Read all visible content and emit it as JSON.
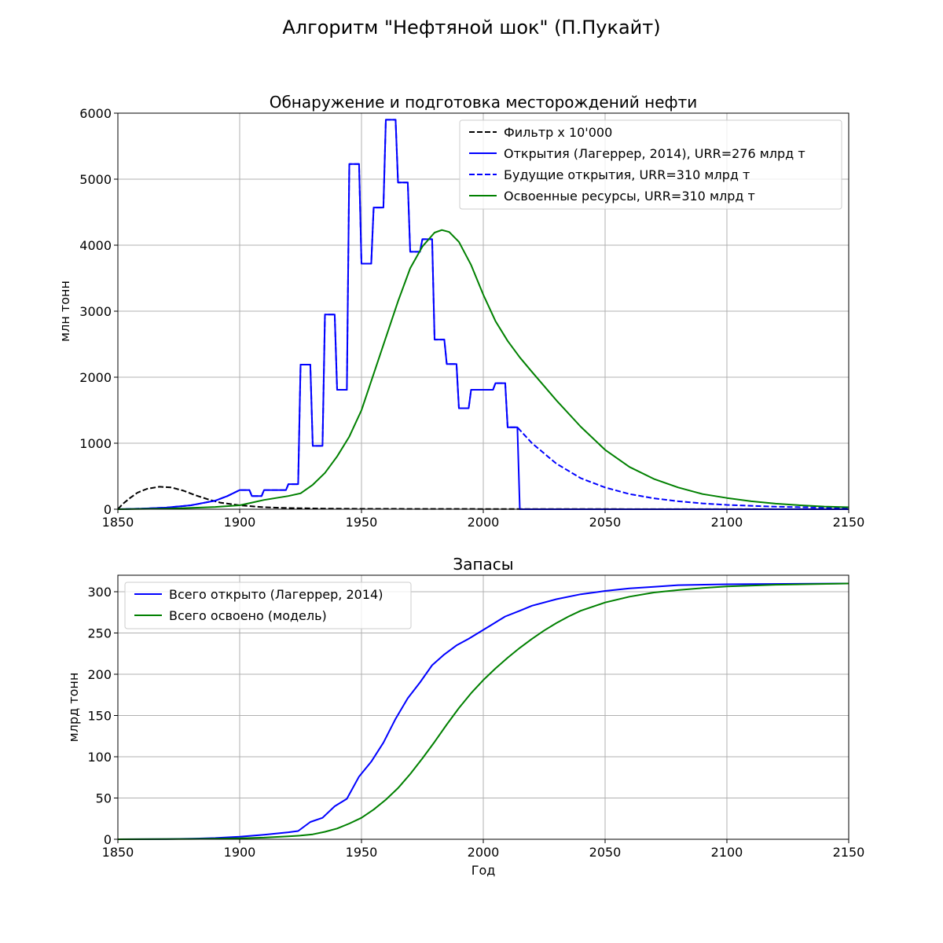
{
  "figure": {
    "title": "Алгоритм \"Нефтяной шок\" (П.Пукайт)"
  },
  "chart_data": [
    {
      "type": "line",
      "title": "Обнаружение и подготовка месторождений нефти",
      "xlabel": "",
      "ylabel": "млн тонн",
      "xlim": [
        1850,
        2150
      ],
      "ylim": [
        0,
        6000
      ],
      "xticks": [
        1850,
        1900,
        1950,
        2000,
        2050,
        2100,
        2150
      ],
      "yticks": [
        0,
        1000,
        2000,
        3000,
        4000,
        5000,
        6000
      ],
      "grid": true,
      "legend_position": "top-right",
      "series": [
        {
          "name": "Фильтр х 10'000",
          "color": "#000000",
          "dash": "dashed",
          "points": [
            [
              1850,
              0
            ],
            [
              1852,
              80
            ],
            [
              1855,
              170
            ],
            [
              1858,
              250
            ],
            [
              1862,
              310
            ],
            [
              1867,
              340
            ],
            [
              1872,
              330
            ],
            [
              1877,
              280
            ],
            [
              1882,
              210
            ],
            [
              1887,
              150
            ],
            [
              1892,
              100
            ],
            [
              1900,
              60
            ],
            [
              1910,
              30
            ],
            [
              1920,
              18
            ],
            [
              1935,
              10
            ],
            [
              1950,
              6
            ],
            [
              2000,
              3
            ],
            [
              2150,
              0
            ]
          ]
        },
        {
          "name": "Будущие открытия, URR=310 млрд т",
          "color": "#0000ff",
          "dash": "dashed",
          "points": [
            [
              1850,
              0
            ],
            [
              1860,
              10
            ],
            [
              1870,
              25
            ],
            [
              1880,
              60
            ],
            [
              1890,
              130
            ],
            [
              1895,
              200
            ],
            [
              1900,
              290
            ],
            [
              1904,
              290
            ],
            [
              1905,
              200
            ],
            [
              1909,
              200
            ],
            [
              1910,
              290
            ],
            [
              1919,
              290
            ],
            [
              1920,
              380
            ],
            [
              1924,
              380
            ],
            [
              1925,
              2190
            ],
            [
              1929,
              2190
            ],
            [
              1930,
              960
            ],
            [
              1934,
              960
            ],
            [
              1935,
              2950
            ],
            [
              1939,
              2950
            ],
            [
              1940,
              1810
            ],
            [
              1944,
              1810
            ],
            [
              1945,
              5230
            ],
            [
              1949,
              5230
            ],
            [
              1950,
              3720
            ],
            [
              1954,
              3720
            ],
            [
              1955,
              4570
            ],
            [
              1959,
              4570
            ],
            [
              1960,
              5900
            ],
            [
              1964,
              5900
            ],
            [
              1965,
              4950
            ],
            [
              1969,
              4950
            ],
            [
              1970,
              3900
            ],
            [
              1974,
              3900
            ],
            [
              1975,
              4090
            ],
            [
              1979,
              4090
            ],
            [
              1980,
              2570
            ],
            [
              1984,
              2570
            ],
            [
              1985,
              2200
            ],
            [
              1989,
              2200
            ],
            [
              1990,
              1530
            ],
            [
              1994,
              1530
            ],
            [
              1995,
              1810
            ],
            [
              2004,
              1810
            ],
            [
              2005,
              1910
            ],
            [
              2009,
              1910
            ],
            [
              2010,
              1240
            ],
            [
              2014,
              1240
            ],
            [
              2020,
              1000
            ],
            [
              2030,
              690
            ],
            [
              2040,
              470
            ],
            [
              2050,
              330
            ],
            [
              2060,
              230
            ],
            [
              2070,
              165
            ],
            [
              2080,
              120
            ],
            [
              2090,
              88
            ],
            [
              2100,
              65
            ],
            [
              2120,
              38
            ],
            [
              2150,
              15
            ]
          ]
        },
        {
          "name": "Открытия (Лагеррер, 2014), URR=276 млрд т",
          "color": "#0000ff",
          "dash": "solid",
          "points": [
            [
              1850,
              0
            ],
            [
              1860,
              10
            ],
            [
              1870,
              25
            ],
            [
              1880,
              60
            ],
            [
              1890,
              130
            ],
            [
              1895,
              200
            ],
            [
              1900,
              290
            ],
            [
              1904,
              290
            ],
            [
              1905,
              200
            ],
            [
              1909,
              200
            ],
            [
              1910,
              290
            ],
            [
              1919,
              290
            ],
            [
              1920,
              380
            ],
            [
              1924,
              380
            ],
            [
              1925,
              2190
            ],
            [
              1929,
              2190
            ],
            [
              1930,
              960
            ],
            [
              1934,
              960
            ],
            [
              1935,
              2950
            ],
            [
              1939,
              2950
            ],
            [
              1940,
              1810
            ],
            [
              1944,
              1810
            ],
            [
              1945,
              5230
            ],
            [
              1949,
              5230
            ],
            [
              1950,
              3720
            ],
            [
              1954,
              3720
            ],
            [
              1955,
              4570
            ],
            [
              1959,
              4570
            ],
            [
              1960,
              5900
            ],
            [
              1964,
              5900
            ],
            [
              1965,
              4950
            ],
            [
              1969,
              4950
            ],
            [
              1970,
              3900
            ],
            [
              1974,
              3900
            ],
            [
              1975,
              4090
            ],
            [
              1979,
              4090
            ],
            [
              1980,
              2570
            ],
            [
              1984,
              2570
            ],
            [
              1985,
              2200
            ],
            [
              1989,
              2200
            ],
            [
              1990,
              1530
            ],
            [
              1994,
              1530
            ],
            [
              1995,
              1810
            ],
            [
              2004,
              1810
            ],
            [
              2005,
              1910
            ],
            [
              2009,
              1910
            ],
            [
              2010,
              1240
            ],
            [
              2014,
              1240
            ],
            [
              2015,
              0
            ],
            [
              2150,
              0
            ]
          ]
        },
        {
          "name": "Освоенные ресурсы, URR=310 млрд т",
          "color": "#008000",
          "dash": "solid",
          "points": [
            [
              1850,
              0
            ],
            [
              1870,
              10
            ],
            [
              1880,
              20
            ],
            [
              1890,
              35
            ],
            [
              1900,
              60
            ],
            [
              1905,
              100
            ],
            [
              1910,
              140
            ],
            [
              1915,
              170
            ],
            [
              1920,
              200
            ],
            [
              1925,
              240
            ],
            [
              1930,
              370
            ],
            [
              1935,
              550
            ],
            [
              1940,
              800
            ],
            [
              1945,
              1100
            ],
            [
              1950,
              1500
            ],
            [
              1955,
              2050
            ],
            [
              1960,
              2600
            ],
            [
              1965,
              3150
            ],
            [
              1970,
              3650
            ],
            [
              1975,
              3980
            ],
            [
              1980,
              4190
            ],
            [
              1983,
              4230
            ],
            [
              1986,
              4200
            ],
            [
              1990,
              4050
            ],
            [
              1995,
              3700
            ],
            [
              2000,
              3250
            ],
            [
              2005,
              2850
            ],
            [
              2010,
              2550
            ],
            [
              2015,
              2300
            ],
            [
              2020,
              2080
            ],
            [
              2030,
              1650
            ],
            [
              2040,
              1250
            ],
            [
              2050,
              900
            ],
            [
              2060,
              640
            ],
            [
              2070,
              460
            ],
            [
              2080,
              330
            ],
            [
              2090,
              230
            ],
            [
              2100,
              170
            ],
            [
              2110,
              120
            ],
            [
              2120,
              85
            ],
            [
              2130,
              60
            ],
            [
              2140,
              40
            ],
            [
              2150,
              30
            ]
          ]
        }
      ]
    },
    {
      "type": "line",
      "title": "Запасы",
      "xlabel": "Год",
      "ylabel": "млрд тонн",
      "xlim": [
        1850,
        2150
      ],
      "ylim": [
        0,
        320
      ],
      "xticks": [
        1850,
        1900,
        1950,
        2000,
        2050,
        2100,
        2150
      ],
      "yticks": [
        0,
        50,
        100,
        150,
        200,
        250,
        300
      ],
      "grid": true,
      "legend_position": "top-left",
      "series": [
        {
          "name": "Всего открыто (Лагеррер, 2014)",
          "color": "#0000ff",
          "dash": "solid",
          "points": [
            [
              1850,
              0
            ],
            [
              1870,
              0.3
            ],
            [
              1880,
              0.7
            ],
            [
              1890,
              1.5
            ],
            [
              1900,
              3
            ],
            [
              1905,
              4.3
            ],
            [
              1910,
              5.5
            ],
            [
              1920,
              8.5
            ],
            [
              1924,
              10
            ],
            [
              1929,
              21
            ],
            [
              1934,
              26
            ],
            [
              1939,
              40
            ],
            [
              1944,
              49
            ],
            [
              1949,
              76
            ],
            [
              1954,
              94
            ],
            [
              1959,
              117
            ],
            [
              1964,
              146
            ],
            [
              1969,
              171
            ],
            [
              1974,
              190
            ],
            [
              1979,
              211
            ],
            [
              1984,
              224
            ],
            [
              1989,
              235
            ],
            [
              1994,
              243
            ],
            [
              2004,
              261
            ],
            [
              2009,
              270
            ],
            [
              2015,
              277
            ],
            [
              2020,
              283
            ],
            [
              2030,
              291
            ],
            [
              2040,
              297
            ],
            [
              2050,
              301
            ],
            [
              2060,
              304
            ],
            [
              2070,
              306
            ],
            [
              2080,
              308
            ],
            [
              2100,
              309
            ],
            [
              2150,
              310
            ]
          ]
        },
        {
          "name": "Всего освоено (модель)",
          "color": "#008000",
          "dash": "solid",
          "points": [
            [
              1850,
              0
            ],
            [
              1880,
              0.4
            ],
            [
              1890,
              0.7
            ],
            [
              1900,
              1.2
            ],
            [
              1910,
              2
            ],
            [
              1920,
              3.5
            ],
            [
              1925,
              4.5
            ],
            [
              1930,
              6
            ],
            [
              1935,
              9
            ],
            [
              1940,
              13
            ],
            [
              1945,
              19
            ],
            [
              1950,
              26
            ],
            [
              1955,
              36
            ],
            [
              1960,
              48
            ],
            [
              1965,
              62
            ],
            [
              1970,
              79
            ],
            [
              1975,
              98
            ],
            [
              1980,
              118
            ],
            [
              1985,
              139
            ],
            [
              1990,
              159
            ],
            [
              1995,
              177
            ],
            [
              2000,
              193
            ],
            [
              2005,
              207
            ],
            [
              2010,
              220
            ],
            [
              2015,
              232
            ],
            [
              2020,
              243
            ],
            [
              2025,
              253
            ],
            [
              2030,
              262
            ],
            [
              2035,
              270
            ],
            [
              2040,
              277
            ],
            [
              2045,
              282
            ],
            [
              2050,
              287
            ],
            [
              2060,
              294
            ],
            [
              2070,
              299
            ],
            [
              2080,
              302
            ],
            [
              2090,
              304.5
            ],
            [
              2100,
              306.5
            ],
            [
              2120,
              308.5
            ],
            [
              2150,
              310
            ]
          ]
        }
      ]
    }
  ]
}
